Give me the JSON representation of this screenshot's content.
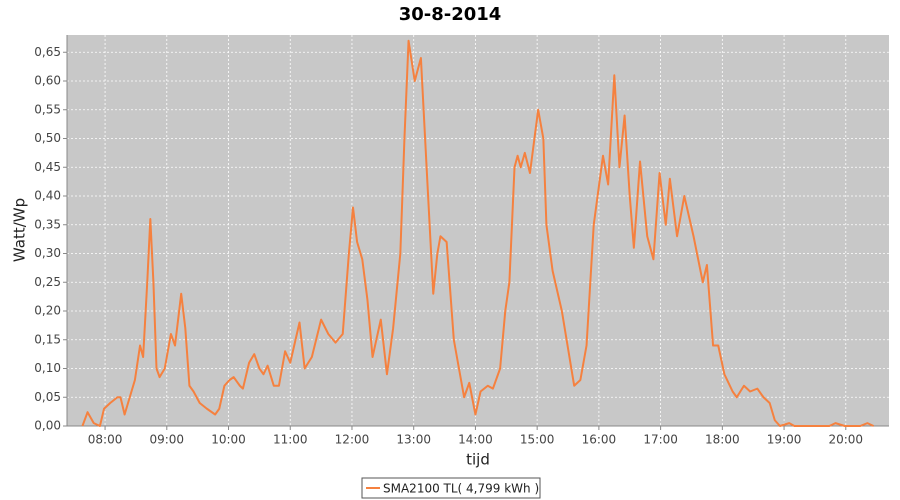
{
  "chart_data": {
    "type": "line",
    "title": "30-8-2014",
    "x_label": "tijd",
    "y_label": "Watt/Wp",
    "x": [
      458,
      463,
      469,
      475,
      479,
      485,
      492,
      495,
      499,
      504,
      509,
      514,
      517,
      521,
      524,
      527,
      530,
      533,
      538,
      544,
      548,
      554,
      558,
      562,
      566,
      572,
      579,
      587,
      591,
      596,
      601,
      605,
      611,
      614,
      620,
      625,
      630,
      634,
      638,
      644,
      649,
      655,
      660,
      669,
      674,
      681,
      690,
      697,
      704,
      711,
      717,
      721,
      725,
      730,
      735,
      740,
      748,
      754,
      760,
      767,
      771,
      775,
      781,
      787,
      794,
      799,
      803,
      806,
      812,
      819,
      824,
      829,
      834,
      840,
      845,
      852,
      857,
      864,
      869,
      873,
      878,
      881,
      884,
      888,
      893,
      901,
      906,
      909,
      915,
      924,
      936,
      942,
      948,
      955,
      964,
      969,
      975,
      980,
      985,
      990,
      994,
      1000,
      1007,
      1013,
      1019,
      1025,
      1029,
      1036,
      1043,
      1052,
      1061,
      1065,
      1071,
      1076,
      1082,
      1090,
      1094,
      1101,
      1107,
      1114,
      1120,
      1126,
      1131,
      1136,
      1145,
      1150,
      1184,
      1190,
      1199,
      1214,
      1221,
      1227
    ],
    "series": [
      {
        "name": "SMA2100 TL( 4,799 kWh )",
        "color": "#f5813f",
        "values": [
          0,
          0.024,
          0.005,
          0,
          0.03,
          0.04,
          0.05,
          0.05,
          0.02,
          0.05,
          0.08,
          0.14,
          0.12,
          0.25,
          0.36,
          0.25,
          0.1,
          0.085,
          0.1,
          0.16,
          0.14,
          0.23,
          0.17,
          0.07,
          0.06,
          0.04,
          0.03,
          0.02,
          0.03,
          0.07,
          0.08,
          0.085,
          0.07,
          0.065,
          0.11,
          0.125,
          0.1,
          0.09,
          0.105,
          0.07,
          0.07,
          0.13,
          0.11,
          0.18,
          0.1,
          0.12,
          0.185,
          0.16,
          0.145,
          0.16,
          0.3,
          0.38,
          0.32,
          0.29,
          0.22,
          0.12,
          0.185,
          0.09,
          0.17,
          0.3,
          0.5,
          0.67,
          0.6,
          0.64,
          0.4,
          0.23,
          0.3,
          0.33,
          0.32,
          0.15,
          0.1,
          0.05,
          0.075,
          0.02,
          0.06,
          0.07,
          0.065,
          0.1,
          0.2,
          0.25,
          0.45,
          0.47,
          0.45,
          0.475,
          0.44,
          0.55,
          0.5,
          0.35,
          0.27,
          0.2,
          0.07,
          0.08,
          0.14,
          0.35,
          0.47,
          0.42,
          0.61,
          0.45,
          0.54,
          0.4,
          0.31,
          0.46,
          0.33,
          0.29,
          0.44,
          0.35,
          0.43,
          0.33,
          0.4,
          0.33,
          0.25,
          0.28,
          0.14,
          0.14,
          0.09,
          0.06,
          0.05,
          0.07,
          0.06,
          0.065,
          0.05,
          0.04,
          0.01,
          0,
          0.005,
          0,
          0,
          0.005,
          0,
          0,
          0.005,
          0
        ]
      }
    ],
    "xlim": [
      443,
      1242
    ],
    "xticks": [
      {
        "value": 480,
        "label": "08:00"
      },
      {
        "value": 540,
        "label": "09:00"
      },
      {
        "value": 600,
        "label": "10:00"
      },
      {
        "value": 660,
        "label": "11:00"
      },
      {
        "value": 720,
        "label": "12:00"
      },
      {
        "value": 780,
        "label": "13:00"
      },
      {
        "value": 840,
        "label": "14:00"
      },
      {
        "value": 900,
        "label": "15:00"
      },
      {
        "value": 960,
        "label": "16:00"
      },
      {
        "value": 1020,
        "label": "17:00"
      },
      {
        "value": 1080,
        "label": "18:00"
      },
      {
        "value": 1140,
        "label": "19:00"
      },
      {
        "value": 1200,
        "label": "20:00"
      }
    ],
    "ylim": [
      0,
      0.68
    ],
    "yticks": [
      {
        "value": 0,
        "label": "0,00"
      },
      {
        "value": 0.05,
        "label": "0,05"
      },
      {
        "value": 0.1,
        "label": "0,10"
      },
      {
        "value": 0.15,
        "label": "0,15"
      },
      {
        "value": 0.2,
        "label": "0,20"
      },
      {
        "value": 0.25,
        "label": "0,25"
      },
      {
        "value": 0.3,
        "label": "0,30"
      },
      {
        "value": 0.35,
        "label": "0,35"
      },
      {
        "value": 0.4,
        "label": "0,40"
      },
      {
        "value": 0.45,
        "label": "0,45"
      },
      {
        "value": 0.5,
        "label": "0,50"
      },
      {
        "value": 0.55,
        "label": "0,55"
      },
      {
        "value": 0.6,
        "label": "0,60"
      },
      {
        "value": 0.65,
        "label": "0,65"
      }
    ],
    "grid": true
  }
}
